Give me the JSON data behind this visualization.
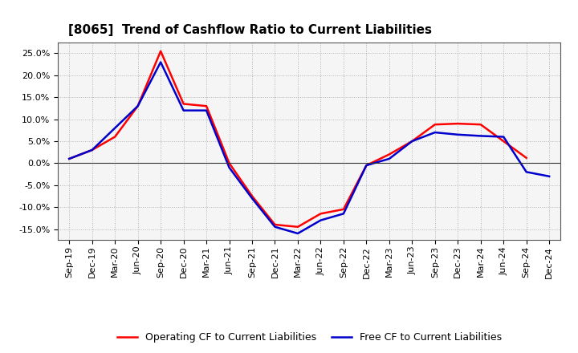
{
  "title": "[8065]  Trend of Cashflow Ratio to Current Liabilities",
  "x_labels": [
    "Sep-19",
    "Dec-19",
    "Mar-20",
    "Jun-20",
    "Sep-20",
    "Dec-20",
    "Mar-21",
    "Jun-21",
    "Sep-21",
    "Dec-21",
    "Mar-22",
    "Jun-22",
    "Sep-22",
    "Dec-22",
    "Mar-23",
    "Jun-23",
    "Sep-23",
    "Dec-23",
    "Mar-24",
    "Jun-24",
    "Sep-24",
    "Dec-24"
  ],
  "operating_cf": [
    0.01,
    0.03,
    0.06,
    0.13,
    0.255,
    0.135,
    0.13,
    0.0,
    -0.075,
    -0.14,
    -0.145,
    -0.115,
    -0.105,
    -0.005,
    0.02,
    0.05,
    0.088,
    0.09,
    0.088,
    0.05,
    0.012,
    null
  ],
  "free_cf": [
    0.01,
    0.03,
    0.08,
    0.13,
    0.23,
    0.12,
    0.12,
    -0.01,
    -0.08,
    -0.145,
    -0.16,
    -0.13,
    -0.115,
    -0.005,
    0.01,
    0.05,
    0.07,
    0.065,
    0.062,
    0.06,
    -0.02,
    -0.03
  ],
  "ylim": [
    -0.175,
    0.275
  ],
  "yticks": [
    -0.15,
    -0.1,
    -0.05,
    0.0,
    0.05,
    0.1,
    0.15,
    0.2,
    0.25
  ],
  "operating_color": "#ff0000",
  "free_color": "#0000cc",
  "bg_color": "#ffffff",
  "plot_bg_color": "#f5f5f5",
  "grid_color": "#aaaaaa",
  "zero_line_color": "#333333",
  "legend_op_label": "Operating CF to Current Liabilities",
  "legend_free_label": "Free CF to Current Liabilities",
  "title_fontsize": 11,
  "axis_fontsize": 8,
  "legend_fontsize": 9
}
